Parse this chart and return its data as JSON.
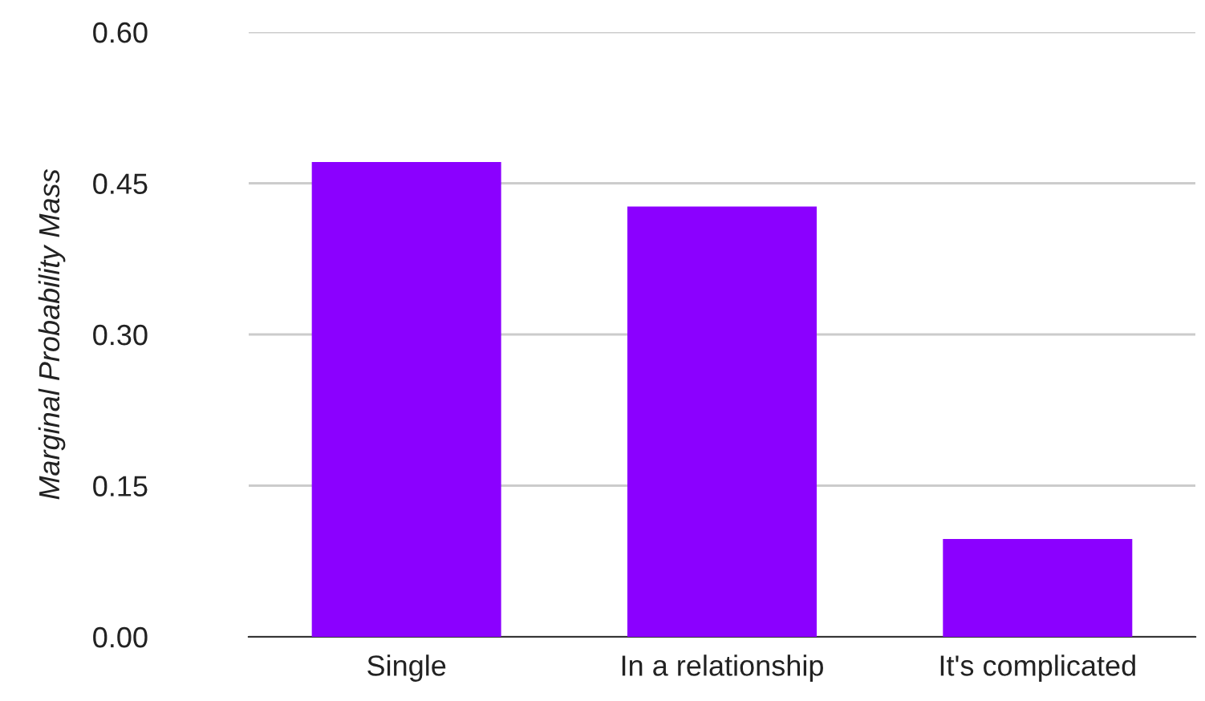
{
  "chart_data": {
    "type": "bar",
    "ylabel": "Marginal Probability Mass",
    "categories": [
      "Single",
      "In a relationship",
      "It's complicated"
    ],
    "values": [
      0.471,
      0.427,
      0.097
    ],
    "color": "#8b00ff",
    "ylim": [
      0,
      0.6
    ],
    "yticks": [
      {
        "value": 0,
        "label": "0.00"
      },
      {
        "value": 0.15,
        "label": "0.15"
      },
      {
        "value": 0.3,
        "label": "0.30"
      },
      {
        "value": 0.45,
        "label": "0.45"
      },
      {
        "value": 0.6,
        "label": "0.60"
      }
    ],
    "grid": "y"
  }
}
